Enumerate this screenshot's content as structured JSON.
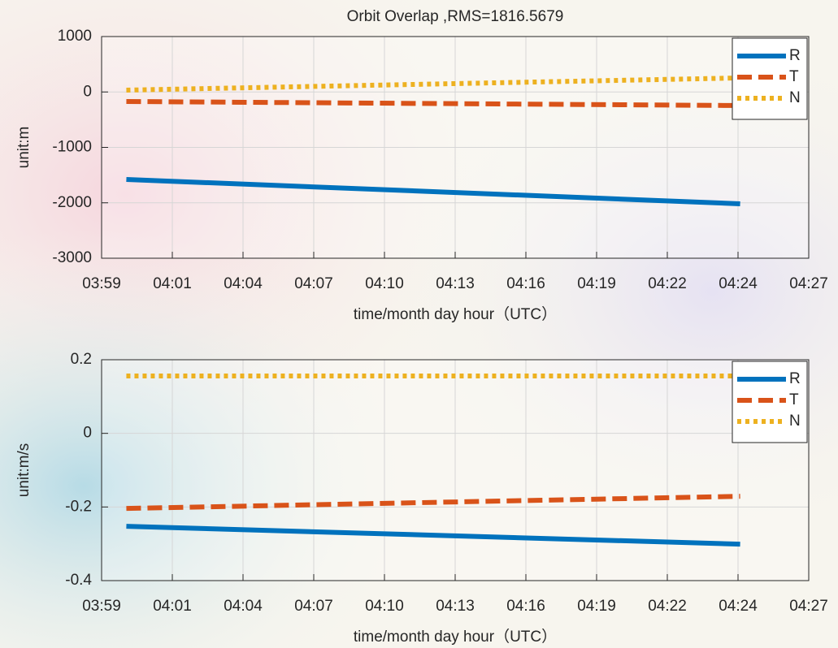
{
  "chart_data": [
    {
      "type": "line",
      "title": "Orbit Overlap ,RMS=1816.5679",
      "x_label": "time/month day hour（UTC）",
      "y_label": "unit:m",
      "x": [
        0.35,
        9.03
      ],
      "series": [
        {
          "name": "R",
          "color": "#0072bd",
          "linestyle": "solid",
          "values": [
            -1579,
            -2018
          ]
        },
        {
          "name": "T",
          "color": "#d95319",
          "linestyle": "dashed",
          "values": [
            -172,
            -245
          ]
        },
        {
          "name": "N",
          "color": "#edb120",
          "linestyle": "dotted",
          "values": [
            33,
            253
          ]
        }
      ],
      "xlim": [
        0,
        10
      ],
      "xticks": [
        {
          "value": 0,
          "label": "03:59"
        },
        {
          "value": 1,
          "label": "04:01"
        },
        {
          "value": 2,
          "label": "04:04"
        },
        {
          "value": 3,
          "label": "04:07"
        },
        {
          "value": 4,
          "label": "04:10"
        },
        {
          "value": 5,
          "label": "04:13"
        },
        {
          "value": 6,
          "label": "04:16"
        },
        {
          "value": 7,
          "label": "04:19"
        },
        {
          "value": 8,
          "label": "04:22"
        },
        {
          "value": 9,
          "label": "04:24"
        },
        {
          "value": 10,
          "label": "04:27"
        }
      ],
      "ylim": [
        -3000,
        1000
      ],
      "yticks": [
        -3000,
        -2000,
        -1000,
        0,
        1000
      ],
      "grid": true,
      "legend": "upper-right"
    },
    {
      "type": "line",
      "x_label": "time/month day hour（UTC）",
      "y_label": "unit:m/s",
      "x": [
        0.35,
        9.03
      ],
      "series": [
        {
          "name": "R",
          "color": "#0072bd",
          "linestyle": "solid",
          "values": [
            -0.2525,
            -0.301
          ]
        },
        {
          "name": "T",
          "color": "#d95319",
          "linestyle": "dashed",
          "values": [
            -0.204,
            -0.171
          ]
        },
        {
          "name": "N",
          "color": "#edb120",
          "linestyle": "dotted",
          "values": [
            0.156,
            0.156
          ]
        }
      ],
      "xlim": [
        0,
        10
      ],
      "xticks": [
        {
          "value": 0,
          "label": "03:59"
        },
        {
          "value": 1,
          "label": "04:01"
        },
        {
          "value": 2,
          "label": "04:04"
        },
        {
          "value": 3,
          "label": "04:07"
        },
        {
          "value": 4,
          "label": "04:10"
        },
        {
          "value": 5,
          "label": "04:13"
        },
        {
          "value": 6,
          "label": "04:16"
        },
        {
          "value": 7,
          "label": "04:19"
        },
        {
          "value": 8,
          "label": "04:22"
        },
        {
          "value": 9,
          "label": "04:24"
        },
        {
          "value": 10,
          "label": "04:27"
        }
      ],
      "ylim": [
        -0.4,
        0.2
      ],
      "yticks": [
        -0.4,
        -0.2,
        0,
        0.2
      ],
      "grid": true,
      "legend": "upper-right"
    }
  ]
}
